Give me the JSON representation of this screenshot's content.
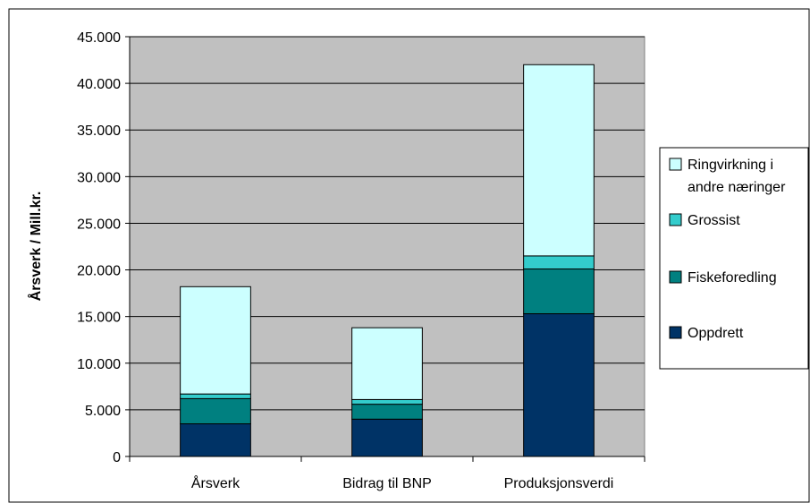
{
  "chart_data": {
    "type": "bar",
    "stacked": true,
    "categories": [
      "Årsverk",
      "Bidrag til BNP",
      "Produksjonsverdi"
    ],
    "series": [
      {
        "name": "Oppdrett",
        "color": "#003366",
        "values": [
          3500,
          4000,
          15300
        ]
      },
      {
        "name": "Fiskeforedling",
        "color": "#008080",
        "values": [
          2700,
          1600,
          4800
        ]
      },
      {
        "name": "Grossist",
        "color": "#33CCCC",
        "values": [
          500,
          500,
          1400
        ]
      },
      {
        "name": "Ringvirkning i andre næringer",
        "legend_lines": [
          "Ringvirkning i",
          "andre næringer"
        ],
        "color": "#CCFFFF",
        "values": [
          11500,
          7700,
          20500
        ]
      }
    ],
    "ylabel": "Årsverk / Mill.kr.",
    "ylim": [
      0,
      45000
    ],
    "y_ticks": [
      "0",
      "5.000",
      "10.000",
      "15.000",
      "20.000",
      "25.000",
      "30.000",
      "35.000",
      "40.000",
      "45.000"
    ],
    "y_tick_values": [
      0,
      5000,
      10000,
      15000,
      20000,
      25000,
      30000,
      35000,
      40000,
      45000
    ],
    "plot_background": "#C0C0C0",
    "gridlines": true,
    "legend_position": "right"
  }
}
